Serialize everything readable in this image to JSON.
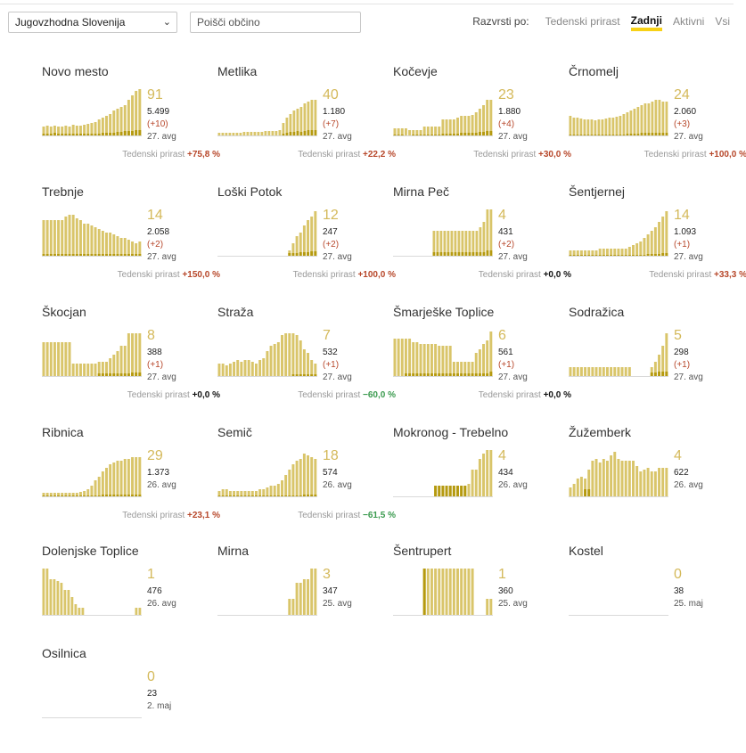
{
  "controls": {
    "region": "Jugovzhodna Slovenija",
    "search_placeholder": "Poišči občino",
    "sort_label": "Razvrsti po:",
    "sort_options": [
      "Tedenski prirast",
      "Zadnji",
      "Aktivni",
      "Vsi"
    ],
    "sort_active": "Zadnji"
  },
  "trend_label": "Tedenski prirast",
  "municipalities": [
    {
      "name": "Novo mesto",
      "value": "91",
      "total": "5.499",
      "change": "(+10)",
      "date": "27. avg",
      "trend": "+75,8 %",
      "dir": "up",
      "bars": [
        10,
        11,
        10,
        11,
        10,
        10,
        11,
        10,
        12,
        11,
        11,
        12,
        13,
        14,
        15,
        18,
        20,
        22,
        24,
        28,
        30,
        32,
        34,
        40,
        45,
        50,
        52
      ],
      "low": [
        2,
        2,
        2,
        3,
        2,
        2,
        2,
        2,
        2,
        2,
        2,
        2,
        2,
        2,
        2,
        2,
        3,
        3,
        3,
        3,
        4,
        4,
        5,
        5,
        5,
        6,
        6
      ]
    },
    {
      "name": "Metlika",
      "value": "40",
      "total": "1.180",
      "change": "(+7)",
      "date": "27. avg",
      "trend": "+22,2 %",
      "dir": "up",
      "bars": [
        3,
        3,
        3,
        3,
        3,
        3,
        3,
        4,
        4,
        4,
        4,
        4,
        4,
        5,
        5,
        5,
        5,
        6,
        14,
        20,
        24,
        28,
        30,
        32,
        36,
        38,
        40,
        40
      ],
      "low": [
        0,
        0,
        0,
        0,
        0,
        0,
        0,
        0,
        0,
        0,
        0,
        0,
        0,
        0,
        0,
        0,
        0,
        0,
        2,
        3,
        4,
        4,
        5,
        4,
        5,
        6,
        6,
        6
      ]
    },
    {
      "name": "Kočevje",
      "value": "23",
      "total": "1.880",
      "change": "(+4)",
      "date": "27. avg",
      "trend": "+30,0 %",
      "dir": "up",
      "bars": [
        8,
        8,
        8,
        8,
        6,
        6,
        6,
        6,
        10,
        10,
        10,
        10,
        10,
        18,
        18,
        18,
        18,
        20,
        22,
        22,
        22,
        23,
        26,
        30,
        34,
        40,
        40
      ],
      "low": [
        1,
        1,
        1,
        0,
        0,
        1,
        1,
        1,
        1,
        1,
        1,
        1,
        1,
        2,
        2,
        2,
        2,
        2,
        3,
        3,
        3,
        3,
        3,
        4,
        4,
        5,
        5
      ]
    },
    {
      "name": "Črnomelj",
      "value": "24",
      "total": "2.060",
      "change": "(+3)",
      "date": "27. avg",
      "trend": "+100,0 %",
      "dir": "up",
      "bars": [
        22,
        20,
        20,
        19,
        18,
        18,
        18,
        17,
        18,
        18,
        19,
        20,
        20,
        21,
        22,
        24,
        26,
        28,
        30,
        32,
        34,
        36,
        36,
        38,
        40,
        40,
        38,
        38
      ],
      "low": [
        1,
        1,
        1,
        1,
        1,
        1,
        1,
        1,
        1,
        1,
        1,
        1,
        1,
        1,
        1,
        1,
        2,
        2,
        2,
        2,
        3,
        3,
        3,
        3,
        3,
        3,
        3,
        3
      ]
    },
    {
      "name": "Trebnje",
      "value": "14",
      "total": "2.058",
      "change": "(+2)",
      "date": "27. avg",
      "trend": "+150,0 %",
      "dir": "up",
      "bars": [
        40,
        40,
        40,
        40,
        40,
        40,
        44,
        46,
        46,
        42,
        40,
        36,
        36,
        34,
        32,
        30,
        28,
        26,
        26,
        24,
        22,
        20,
        20,
        18,
        16,
        14,
        16
      ],
      "low": [
        2,
        2,
        2,
        2,
        2,
        2,
        2,
        2,
        2,
        2,
        2,
        2,
        2,
        2,
        2,
        2,
        2,
        2,
        2,
        2,
        2,
        2,
        2,
        2,
        2,
        2,
        2
      ]
    },
    {
      "name": "Loški Potok",
      "value": "12",
      "total": "247",
      "change": "(+2)",
      "date": "27. avg",
      "trend": "+100,0 %",
      "dir": "up",
      "bars": [
        0,
        0,
        0,
        0,
        0,
        0,
        0,
        0,
        0,
        0,
        0,
        0,
        0,
        0,
        0,
        0,
        0,
        0,
        0,
        6,
        14,
        22,
        26,
        34,
        40,
        44,
        50
      ],
      "low": [
        0,
        0,
        0,
        0,
        0,
        0,
        0,
        0,
        0,
        0,
        0,
        0,
        0,
        0,
        0,
        0,
        0,
        0,
        0,
        3,
        3,
        3,
        4,
        4,
        4,
        5,
        5
      ]
    },
    {
      "name": "Mirna Peč",
      "value": "4",
      "total": "431",
      "change": "(+2)",
      "date": "27. avg",
      "trend": "+0,0 %",
      "dir": "flat",
      "bars": [
        0,
        0,
        0,
        0,
        0,
        0,
        0,
        0,
        0,
        0,
        0,
        28,
        28,
        28,
        28,
        28,
        28,
        28,
        28,
        28,
        28,
        28,
        28,
        28,
        32,
        38,
        52,
        52
      ],
      "low": [
        0,
        0,
        0,
        0,
        0,
        0,
        0,
        0,
        0,
        0,
        0,
        4,
        4,
        4,
        4,
        4,
        4,
        4,
        4,
        4,
        4,
        4,
        4,
        4,
        4,
        4,
        6,
        6
      ]
    },
    {
      "name": "Šentjernej",
      "value": "14",
      "total": "1.093",
      "change": "(+1)",
      "date": "27. avg",
      "trend": "+33,3 %",
      "dir": "up",
      "bars": [
        6,
        6,
        6,
        6,
        6,
        6,
        6,
        6,
        8,
        8,
        8,
        8,
        8,
        8,
        8,
        8,
        10,
        12,
        14,
        16,
        20,
        24,
        28,
        32,
        38,
        44,
        50
      ],
      "low": [
        1,
        1,
        1,
        1,
        1,
        1,
        1,
        1,
        1,
        1,
        1,
        1,
        1,
        1,
        1,
        1,
        1,
        1,
        1,
        1,
        1,
        2,
        2,
        2,
        2,
        3,
        3
      ]
    },
    {
      "name": "Škocjan",
      "value": "8",
      "total": "388",
      "change": "(+1)",
      "date": "27. avg",
      "trend": "+0,0 %",
      "dir": "flat",
      "bars": [
        38,
        38,
        38,
        38,
        38,
        38,
        38,
        38,
        14,
        14,
        14,
        14,
        14,
        14,
        14,
        16,
        16,
        16,
        20,
        24,
        28,
        34,
        34,
        48,
        48,
        48,
        48
      ],
      "low": [
        0,
        0,
        0,
        0,
        0,
        0,
        0,
        0,
        0,
        0,
        0,
        0,
        0,
        0,
        0,
        3,
        3,
        3,
        3,
        3,
        3,
        3,
        3,
        3,
        4,
        4,
        4
      ]
    },
    {
      "name": "Straža",
      "value": "7",
      "total": "532",
      "change": "(+1)",
      "date": "27. avg",
      "trend": "−60,0 %",
      "dir": "down",
      "bars": [
        14,
        14,
        12,
        14,
        16,
        18,
        16,
        18,
        18,
        16,
        14,
        18,
        20,
        28,
        34,
        36,
        38,
        46,
        48,
        48,
        48,
        46,
        40,
        30,
        26,
        18,
        14
      ],
      "low": [
        0,
        0,
        0,
        0,
        0,
        0,
        0,
        0,
        0,
        0,
        0,
        0,
        0,
        0,
        0,
        0,
        0,
        0,
        0,
        0,
        2,
        2,
        2,
        2,
        2,
        2,
        2
      ]
    },
    {
      "name": "Šmarješke Toplice",
      "value": "6",
      "total": "561",
      "change": "(+1)",
      "date": "27. avg",
      "trend": "+0,0 %",
      "dir": "flat",
      "bars": [
        42,
        42,
        42,
        42,
        42,
        38,
        38,
        36,
        36,
        36,
        36,
        36,
        34,
        34,
        34,
        34,
        16,
        16,
        16,
        16,
        16,
        16,
        26,
        30,
        36,
        40,
        50
      ],
      "low": [
        0,
        0,
        0,
        3,
        3,
        3,
        3,
        3,
        3,
        3,
        3,
        3,
        3,
        3,
        3,
        3,
        3,
        3,
        3,
        3,
        3,
        3,
        3,
        3,
        3,
        3,
        5
      ]
    },
    {
      "name": "Sodražica",
      "value": "5",
      "total": "298",
      "change": "(+1)",
      "date": "27. avg",
      "trend": "",
      "dir": "up",
      "bars": [
        10,
        10,
        10,
        10,
        10,
        10,
        10,
        10,
        10,
        10,
        10,
        10,
        10,
        10,
        10,
        10,
        10,
        0,
        0,
        0,
        0,
        0,
        10,
        16,
        24,
        34,
        48
      ],
      "low": [
        0,
        0,
        0,
        0,
        0,
        0,
        0,
        0,
        0,
        0,
        0,
        0,
        0,
        0,
        0,
        0,
        0,
        0,
        0,
        0,
        0,
        0,
        4,
        4,
        5,
        5,
        5
      ]
    },
    {
      "name": "Ribnica",
      "value": "29",
      "total": "1.373",
      "change": "",
      "date": "26. avg",
      "trend": "+23,1 %",
      "dir": "up",
      "bars": [
        4,
        4,
        4,
        4,
        4,
        4,
        4,
        4,
        4,
        4,
        5,
        6,
        8,
        12,
        18,
        22,
        28,
        32,
        36,
        38,
        40,
        40,
        42,
        42,
        44,
        44,
        44
      ],
      "low": [
        1,
        1,
        1,
        1,
        1,
        1,
        1,
        1,
        1,
        1,
        1,
        1,
        1,
        1,
        1,
        1,
        2,
        2,
        2,
        2,
        2,
        2,
        2,
        2,
        2,
        2,
        2
      ]
    },
    {
      "name": "Semič",
      "value": "18",
      "total": "574",
      "change": "",
      "date": "26. avg",
      "trend": "−61,5 %",
      "dir": "down",
      "bars": [
        6,
        8,
        8,
        6,
        6,
        6,
        6,
        6,
        6,
        6,
        6,
        8,
        8,
        10,
        12,
        12,
        14,
        18,
        24,
        30,
        36,
        40,
        42,
        48,
        46,
        44,
        42
      ],
      "low": [
        1,
        1,
        1,
        1,
        1,
        1,
        1,
        1,
        1,
        1,
        1,
        1,
        1,
        1,
        1,
        1,
        1,
        1,
        1,
        1,
        1,
        1,
        1,
        2,
        2,
        2,
        2
      ]
    },
    {
      "name": "Mokronog - Trebelno",
      "value": "4",
      "total": "434",
      "change": "",
      "date": "26. avg",
      "trend": "",
      "dir": "flat",
      "bars": [
        0,
        0,
        0,
        0,
        0,
        0,
        0,
        0,
        0,
        0,
        0,
        12,
        12,
        12,
        12,
        12,
        12,
        12,
        12,
        12,
        14,
        30,
        30,
        42,
        48,
        52,
        52
      ],
      "low": [
        0,
        0,
        0,
        0,
        0,
        0,
        0,
        0,
        0,
        0,
        0,
        12,
        12,
        12,
        12,
        12,
        12,
        12,
        12,
        12,
        0,
        0,
        0,
        0,
        0,
        0,
        0
      ]
    },
    {
      "name": "Žužemberk",
      "value": "4",
      "total": "622",
      "change": "",
      "date": "26. avg",
      "trend": "",
      "dir": "flat",
      "bars": [
        10,
        14,
        20,
        22,
        20,
        30,
        40,
        42,
        38,
        42,
        40,
        46,
        50,
        42,
        40,
        40,
        40,
        40,
        34,
        28,
        30,
        32,
        28,
        28,
        32,
        32,
        32
      ],
      "low": [
        0,
        0,
        0,
        0,
        8,
        8,
        0,
        0,
        0,
        0,
        0,
        0,
        0,
        0,
        0,
        0,
        0,
        0,
        0,
        0,
        0,
        0,
        0,
        0,
        0,
        0,
        0
      ]
    },
    {
      "name": "Dolenjske Toplice",
      "value": "1",
      "total": "476",
      "change": "",
      "date": "26. avg",
      "trend": "",
      "dir": "flat",
      "bars": [
        52,
        52,
        40,
        40,
        38,
        36,
        28,
        28,
        20,
        12,
        8,
        8,
        0,
        0,
        0,
        0,
        0,
        0,
        0,
        0,
        0,
        0,
        0,
        0,
        0,
        0,
        8,
        8
      ],
      "low": [
        0,
        0,
        0,
        0,
        0,
        0,
        0,
        0,
        0,
        0,
        0,
        0,
        0,
        0,
        0,
        0,
        0,
        0,
        0,
        0,
        0,
        0,
        0,
        0,
        0,
        0,
        0,
        0
      ]
    },
    {
      "name": "Mirna",
      "value": "3",
      "total": "347",
      "change": "",
      "date": "25. avg",
      "trend": "",
      "dir": "flat",
      "bars": [
        0,
        0,
        0,
        0,
        0,
        0,
        0,
        0,
        0,
        0,
        0,
        0,
        0,
        0,
        0,
        0,
        0,
        0,
        0,
        18,
        18,
        36,
        36,
        40,
        40,
        52,
        52
      ],
      "low": [
        0,
        0,
        0,
        0,
        0,
        0,
        0,
        0,
        0,
        0,
        0,
        0,
        0,
        0,
        0,
        0,
        0,
        0,
        0,
        0,
        0,
        0,
        0,
        0,
        0,
        0,
        0
      ]
    },
    {
      "name": "Šentrupert",
      "value": "1",
      "total": "360",
      "change": "",
      "date": "25. avg",
      "trend": "",
      "dir": "flat",
      "bars": [
        0,
        0,
        0,
        0,
        0,
        0,
        0,
        0,
        52,
        52,
        52,
        52,
        52,
        52,
        52,
        52,
        52,
        52,
        52,
        52,
        52,
        52,
        0,
        0,
        0,
        18,
        18
      ],
      "low": [
        0,
        0,
        0,
        0,
        0,
        0,
        0,
        0,
        52,
        0,
        0,
        0,
        0,
        0,
        0,
        0,
        0,
        0,
        0,
        0,
        0,
        0,
        0,
        0,
        0,
        0,
        0
      ]
    },
    {
      "name": "Kostel",
      "value": "0",
      "total": "38",
      "change": "",
      "date": "25. maj",
      "trend": "",
      "dir": "flat",
      "bars": [],
      "low": []
    },
    {
      "name": "Osilnica",
      "value": "0",
      "total": "23",
      "change": "",
      "date": "2. maj",
      "trend": "",
      "dir": "flat",
      "bars": [],
      "low": []
    }
  ]
}
